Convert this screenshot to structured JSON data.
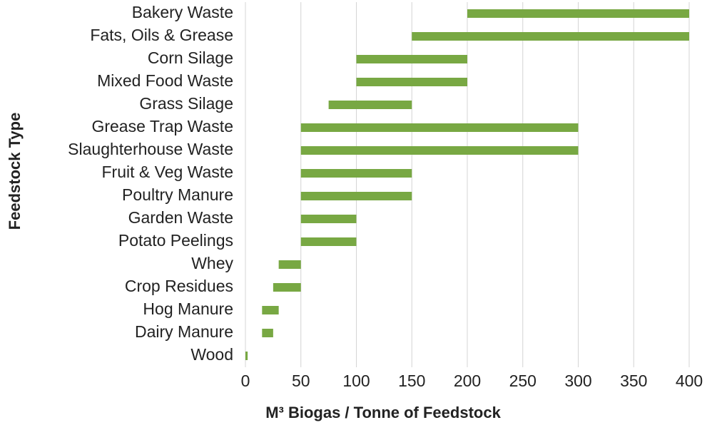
{
  "chart_data": {
    "type": "range_bar",
    "x_axis_label": "M³ Biogas / Tonne of Feedstock",
    "y_axis_label": "Feedstock Type",
    "categories": [
      "Bakery Waste",
      "Fats, Oils & Grease",
      "Corn Silage",
      "Mixed Food Waste",
      "Grass Silage",
      "Grease Trap Waste",
      "Slaughterhouse Waste",
      "Fruit & Veg Waste",
      "Poultry Manure",
      "Garden Waste",
      "Potato Peelings",
      "Whey",
      "Crop Residues",
      "Hog Manure",
      "Dairy Manure",
      "Wood"
    ],
    "low": [
      200,
      150,
      100,
      100,
      75,
      50,
      50,
      50,
      50,
      50,
      50,
      30,
      25,
      15,
      15,
      0
    ],
    "high": [
      400,
      400,
      200,
      200,
      150,
      300,
      300,
      150,
      150,
      100,
      100,
      50,
      50,
      30,
      25,
      2
    ],
    "color": "#78a843",
    "xlim": [
      0,
      400
    ],
    "xticks": [
      0,
      50,
      100,
      150,
      200,
      250,
      300,
      350,
      400
    ],
    "grid": true
  }
}
